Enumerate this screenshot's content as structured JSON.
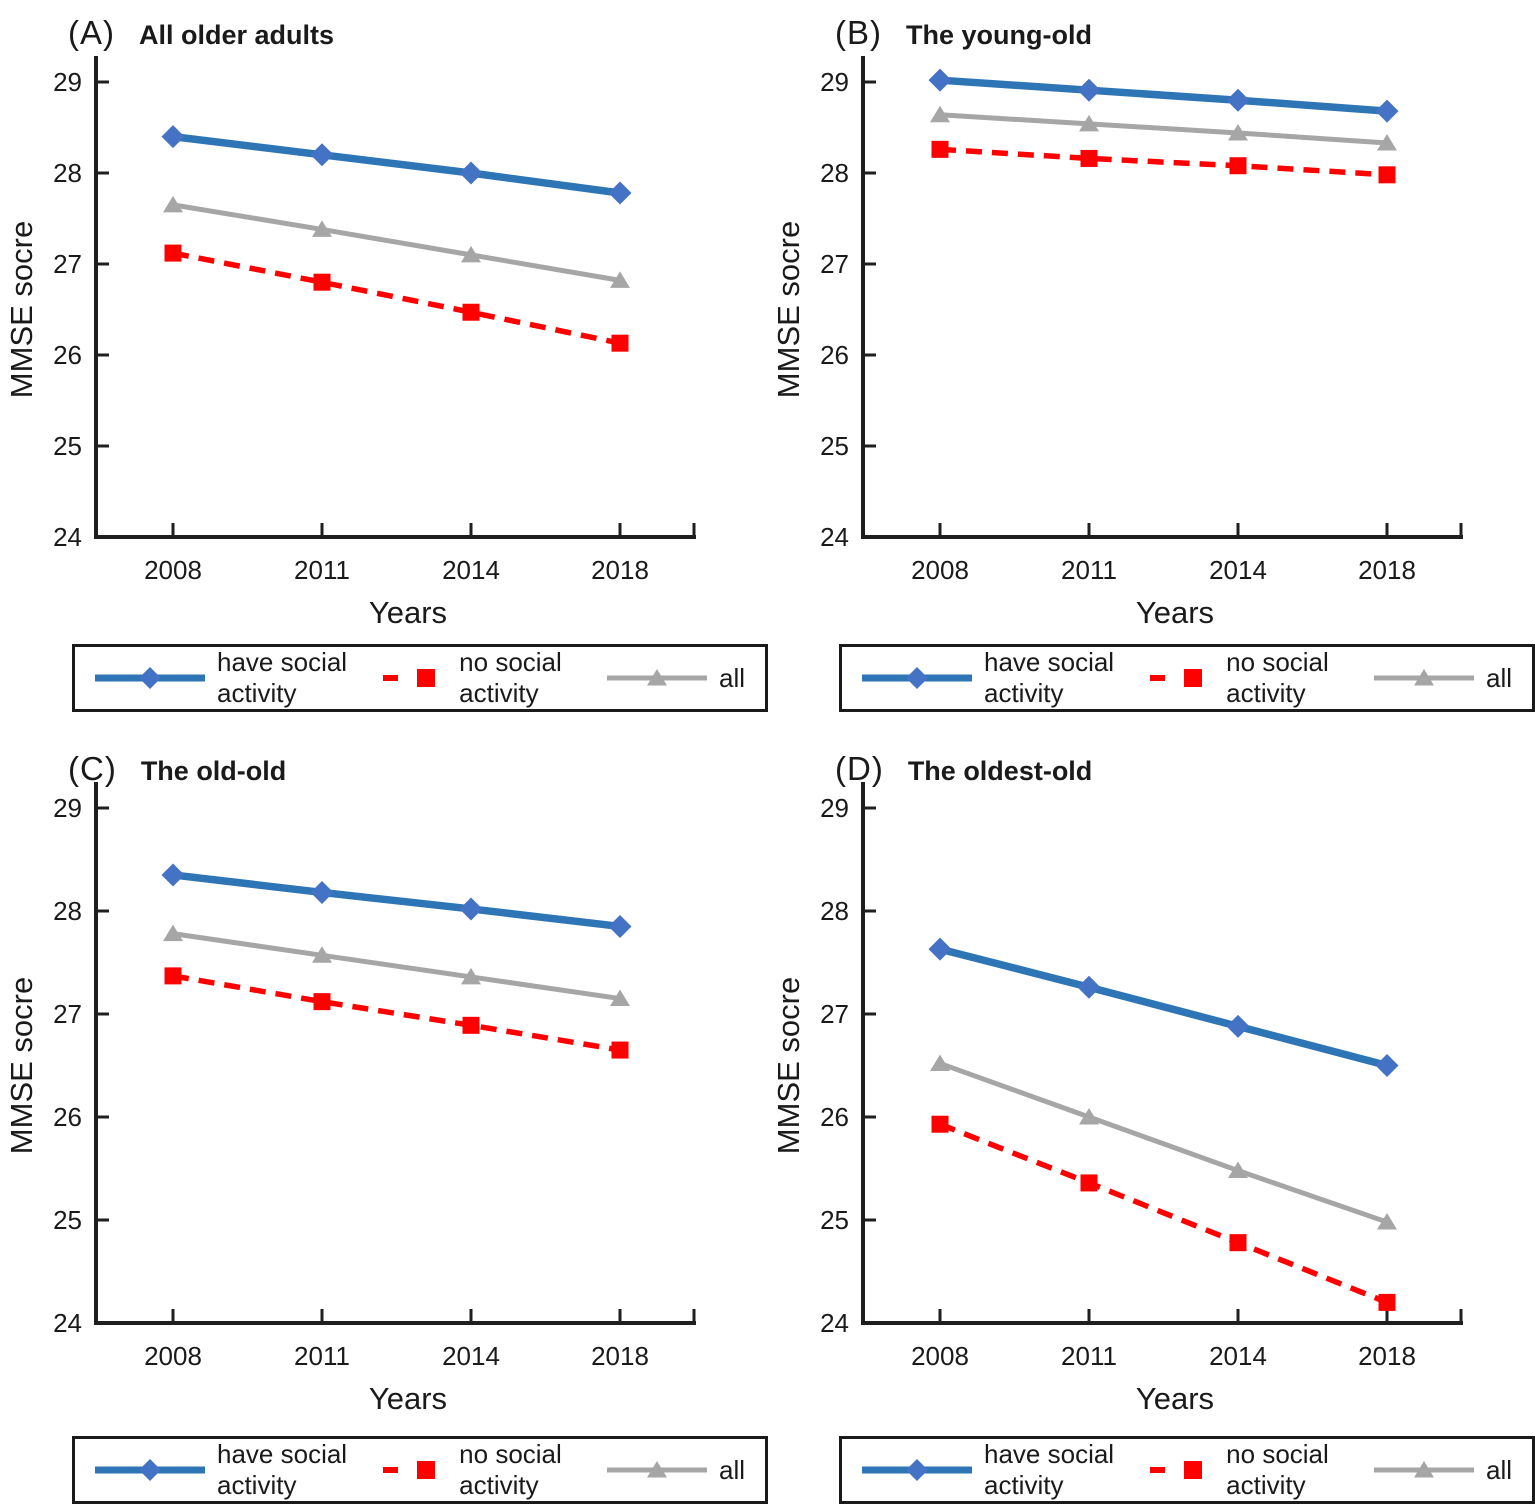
{
  "figure": {
    "ylabel": "MMSE socre",
    "xlabel": "Years",
    "colors": {
      "have_line": "#2E75B6",
      "have_marker": "#4472C4",
      "no_line": "#FF0000",
      "no_marker": "#FF0000",
      "all_line": "#A6A6A6",
      "all_marker": "#A6A6A6",
      "axis": "#1f1f1f"
    }
  },
  "legend": {
    "items": [
      "have social activity",
      "no social activity",
      "all"
    ]
  },
  "chart_data": [
    {
      "id": "A",
      "type": "line",
      "title_prefix": "(A)",
      "title": "All older adults",
      "xlabel": "Years",
      "ylabel": "MMSE socre",
      "ylim": [
        24,
        29
      ],
      "yticks": [
        29,
        28,
        27,
        26,
        25,
        24
      ],
      "grid": false,
      "legend_position": "bottom-boxed",
      "categories": [
        "2008",
        "2011",
        "2014",
        "2018"
      ],
      "series": [
        {
          "name": "have social activity",
          "marker": "diamond",
          "style": "solid",
          "color": "#2E75B6",
          "marker_color": "#4472C4",
          "values": [
            28.4,
            28.2,
            28.0,
            27.78
          ]
        },
        {
          "name": "no social activity",
          "marker": "square",
          "style": "dashed",
          "color": "#FF0000",
          "marker_color": "#FF0000",
          "values": [
            27.12,
            26.8,
            26.47,
            26.13
          ]
        },
        {
          "name": "all",
          "marker": "triangle",
          "style": "solid",
          "color": "#A6A6A6",
          "marker_color": "#A6A6A6",
          "values": [
            27.65,
            27.38,
            27.1,
            26.82
          ]
        }
      ]
    },
    {
      "id": "B",
      "type": "line",
      "title_prefix": "(B)",
      "title": "The young-old",
      "xlabel": "Years",
      "ylabel": "MMSE socre",
      "ylim": [
        24,
        29
      ],
      "yticks": [
        29,
        28,
        27,
        26,
        25,
        24
      ],
      "grid": false,
      "legend_position": "bottom-boxed",
      "categories": [
        "2008",
        "2011",
        "2014",
        "2018"
      ],
      "series": [
        {
          "name": "have social activity",
          "marker": "diamond",
          "style": "solid",
          "color": "#2E75B6",
          "marker_color": "#4472C4",
          "values": [
            29.02,
            28.91,
            28.8,
            28.68
          ]
        },
        {
          "name": "no social activity",
          "marker": "square",
          "style": "dashed",
          "color": "#FF0000",
          "marker_color": "#FF0000",
          "values": [
            28.26,
            28.16,
            28.08,
            27.98
          ]
        },
        {
          "name": "all",
          "marker": "triangle",
          "style": "solid",
          "color": "#A6A6A6",
          "marker_color": "#A6A6A6",
          "values": [
            28.64,
            28.54,
            28.44,
            28.33
          ]
        }
      ]
    },
    {
      "id": "C",
      "type": "line",
      "title_prefix": "(C)",
      "title": "The old-old",
      "xlabel": "Years",
      "ylabel": "MMSE socre",
      "ylim": [
        24,
        29
      ],
      "yticks": [
        29,
        28,
        27,
        26,
        25,
        24
      ],
      "grid": false,
      "legend_position": "bottom-boxed",
      "categories": [
        "2008",
        "2011",
        "2014",
        "2018"
      ],
      "series": [
        {
          "name": "have social activity",
          "marker": "diamond",
          "style": "solid",
          "color": "#2E75B6",
          "marker_color": "#4472C4",
          "values": [
            28.35,
            28.18,
            28.02,
            27.85
          ]
        },
        {
          "name": "no social activity",
          "marker": "square",
          "style": "dashed",
          "color": "#FF0000",
          "marker_color": "#FF0000",
          "values": [
            27.37,
            27.12,
            26.89,
            26.65
          ]
        },
        {
          "name": "all",
          "marker": "triangle",
          "style": "solid",
          "color": "#A6A6A6",
          "marker_color": "#A6A6A6",
          "values": [
            27.78,
            27.57,
            27.36,
            27.15
          ]
        }
      ]
    },
    {
      "id": "D",
      "type": "line",
      "title_prefix": "(D)",
      "title": "The oldest-old",
      "xlabel": "Years",
      "ylabel": "MMSE socre",
      "ylim": [
        24,
        29
      ],
      "yticks": [
        29,
        28,
        27,
        26,
        25,
        24
      ],
      "grid": false,
      "legend_position": "bottom-boxed",
      "categories": [
        "2008",
        "2011",
        "2014",
        "2018"
      ],
      "series": [
        {
          "name": "have social activity",
          "marker": "diamond",
          "style": "solid",
          "color": "#2E75B6",
          "marker_color": "#4472C4",
          "values": [
            27.63,
            27.26,
            26.88,
            26.5
          ]
        },
        {
          "name": "no social activity",
          "marker": "square",
          "style": "dashed",
          "color": "#FF0000",
          "marker_color": "#FF0000",
          "values": [
            25.93,
            25.36,
            24.78,
            24.2
          ]
        },
        {
          "name": "all",
          "marker": "triangle",
          "style": "solid",
          "color": "#A6A6A6",
          "marker_color": "#A6A6A6",
          "values": [
            26.52,
            26.0,
            25.48,
            24.98
          ]
        }
      ]
    }
  ]
}
